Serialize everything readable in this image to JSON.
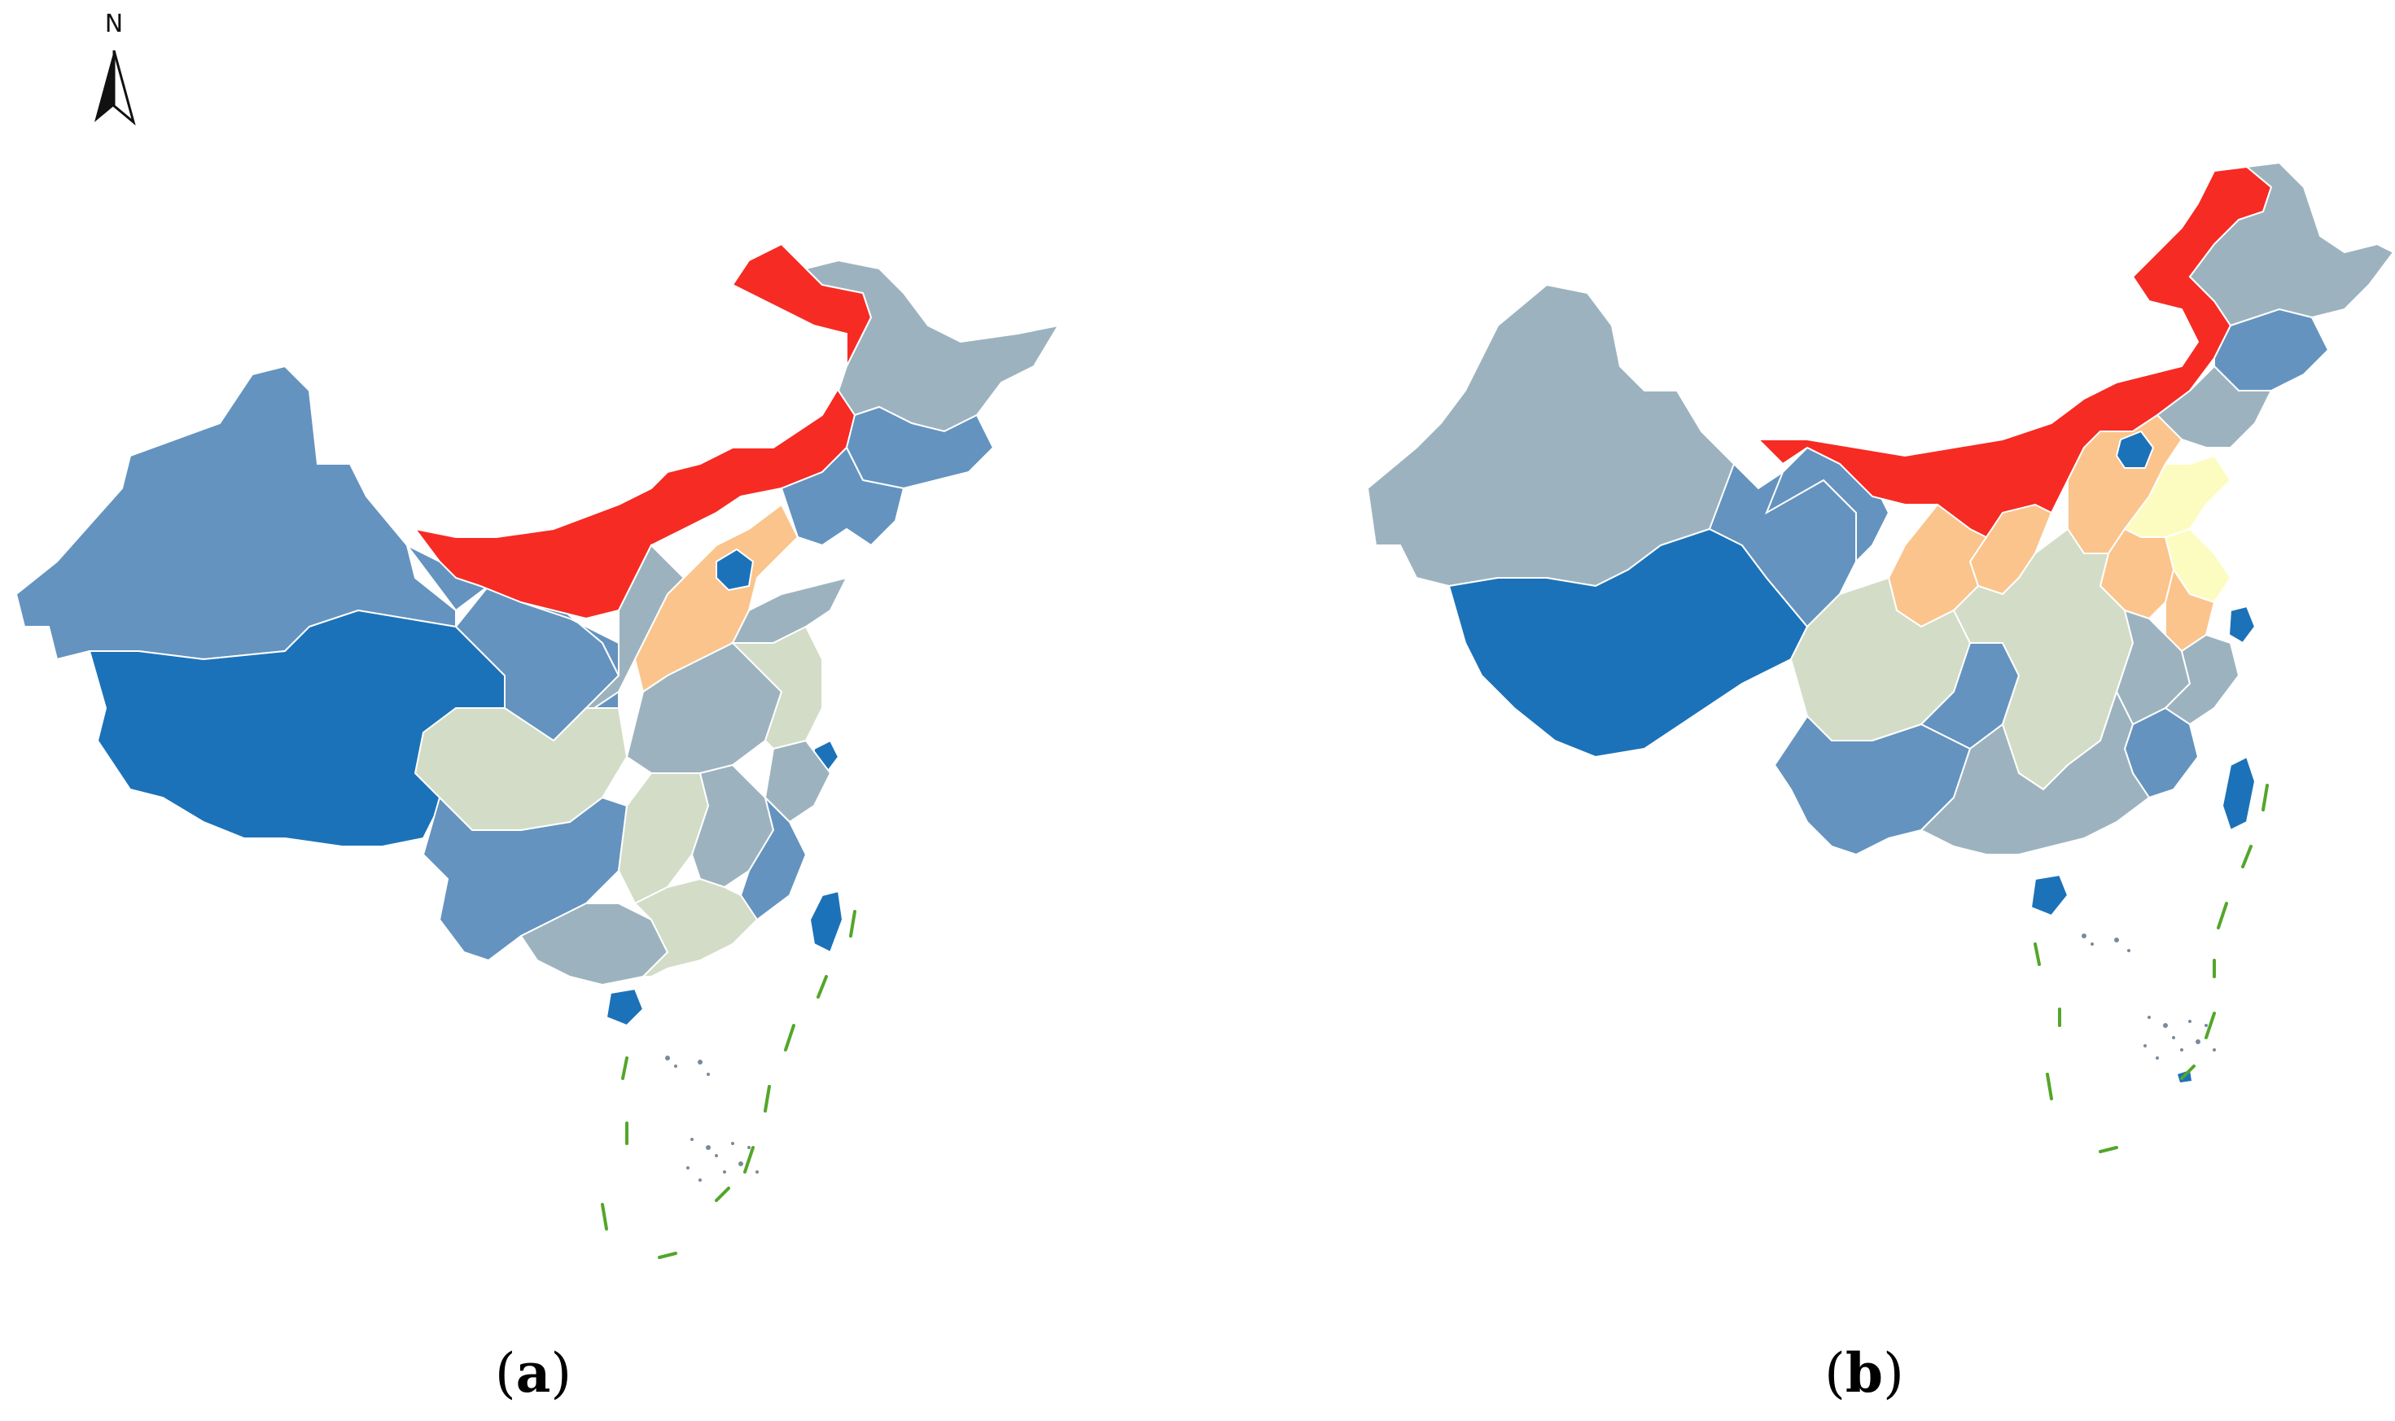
{
  "north_arrow": {
    "label": "N"
  },
  "panels": [
    {
      "id": "a",
      "caption_open": "(",
      "caption_letter": "a",
      "caption_close": ")"
    },
    {
      "id": "b",
      "caption_open": "(",
      "caption_letter": "b",
      "caption_close": ")"
    }
  ],
  "colors": {
    "red": "#f62b24",
    "orange": "#fbc48c",
    "light_yellow": "#fdfcc0",
    "sage": "#d3dcc7",
    "gray_blue": "#9cb3bf",
    "mid_blue": "#6493bf",
    "dark_blue": "#1c72b8",
    "nine_dash": "#54a62a"
  }
}
